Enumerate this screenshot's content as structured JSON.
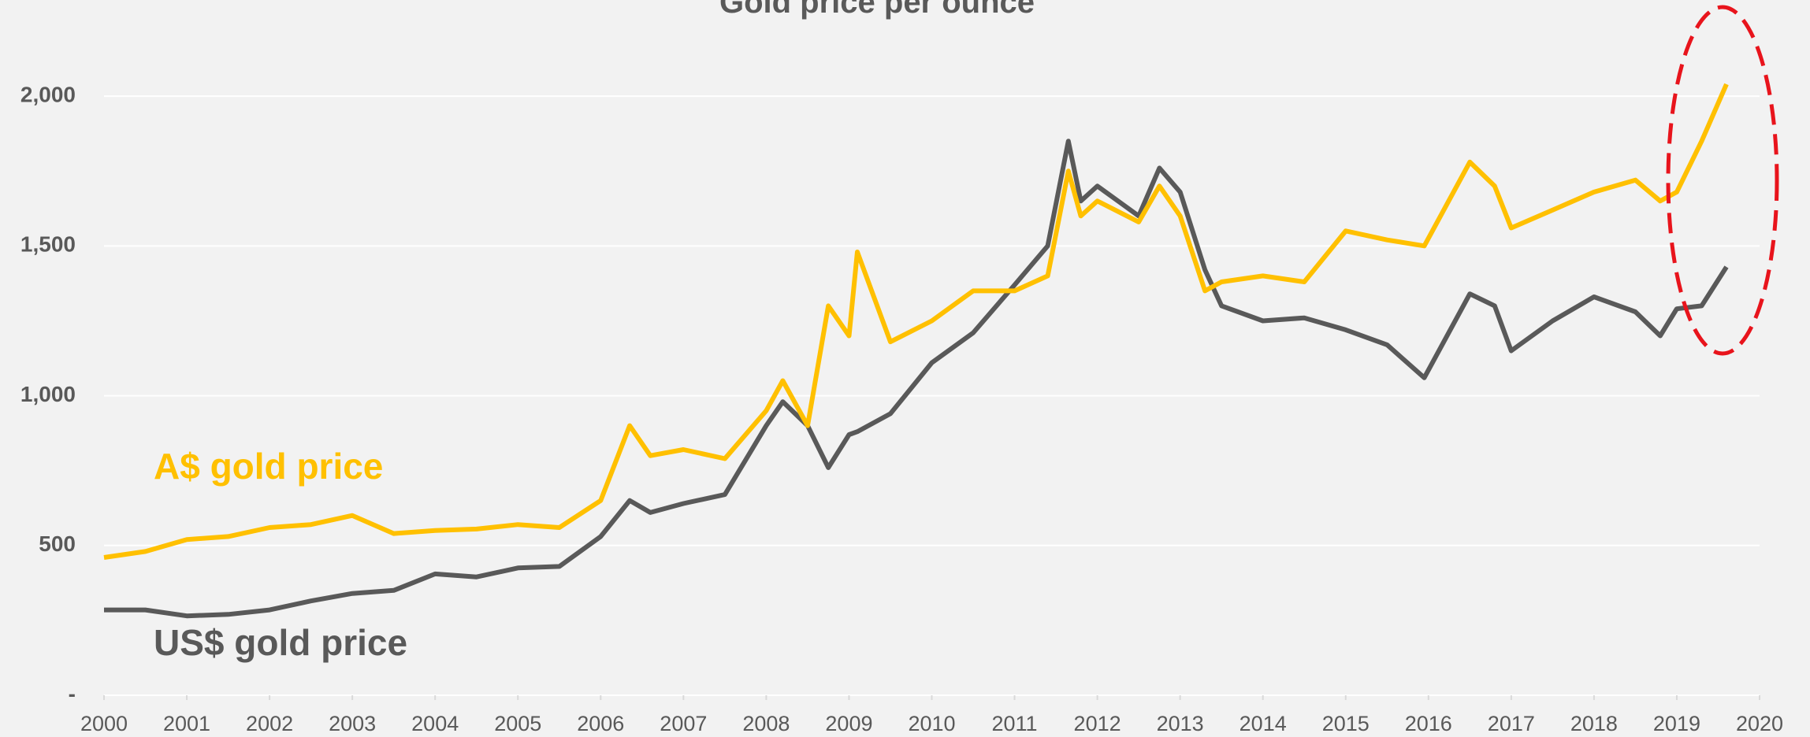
{
  "chart_data": {
    "type": "line",
    "title": "Gold price per ounce",
    "x": [
      2000,
      2000.5,
      2001,
      2001.5,
      2002,
      2002.5,
      2003,
      2003.5,
      2004,
      2004.5,
      2005,
      2005.5,
      2006,
      2006.35,
      2006.6,
      2007,
      2007.5,
      2008,
      2008.2,
      2008.5,
      2008.75,
      2009,
      2009.1,
      2009.5,
      2010,
      2010.5,
      2011,
      2011.4,
      2011.65,
      2011.8,
      2012,
      2012.5,
      2012.75,
      2013,
      2013.3,
      2013.5,
      2014,
      2014.5,
      2015,
      2015.5,
      2015.95,
      2016.5,
      2016.8,
      2017,
      2017.5,
      2018,
      2018.5,
      2018.8,
      2019,
      2019.3,
      2019.6
    ],
    "series": [
      {
        "name": "A$ gold price",
        "color": "#ffc000",
        "values": [
          460,
          480,
          520,
          530,
          560,
          570,
          600,
          540,
          550,
          555,
          570,
          560,
          650,
          900,
          800,
          820,
          790,
          950,
          1050,
          900,
          1300,
          1200,
          1480,
          1180,
          1250,
          1350,
          1350,
          1400,
          1750,
          1600,
          1650,
          1580,
          1700,
          1600,
          1350,
          1380,
          1400,
          1380,
          1550,
          1520,
          1500,
          1780,
          1700,
          1560,
          1620,
          1680,
          1720,
          1650,
          1680,
          1850,
          2040
        ]
      },
      {
        "name": "US$ gold price",
        "color": "#595959",
        "values": [
          285,
          285,
          265,
          270,
          285,
          315,
          340,
          350,
          405,
          395,
          425,
          430,
          530,
          650,
          610,
          640,
          670,
          900,
          980,
          900,
          760,
          870,
          880,
          940,
          1110,
          1210,
          1370,
          1500,
          1850,
          1650,
          1700,
          1600,
          1760,
          1680,
          1420,
          1300,
          1250,
          1260,
          1220,
          1170,
          1060,
          1340,
          1300,
          1150,
          1250,
          1330,
          1280,
          1200,
          1290,
          1300,
          1430
        ]
      }
    ],
    "xlim": [
      2000,
      2020
    ],
    "xticks": [
      2000,
      2001,
      2002,
      2003,
      2004,
      2005,
      2006,
      2007,
      2008,
      2009,
      2010,
      2011,
      2012,
      2013,
      2014,
      2015,
      2016,
      2017,
      2018,
      2019,
      2020
    ],
    "ylim": [
      0,
      2300
    ],
    "yticks": [
      {
        "value": 0,
        "label": "-"
      },
      500,
      {
        "value": 1000,
        "label": "1,000"
      },
      {
        "value": 1500,
        "label": "1,500"
      },
      {
        "value": 2000,
        "label": "2,000"
      }
    ],
    "grid": true
  }
}
